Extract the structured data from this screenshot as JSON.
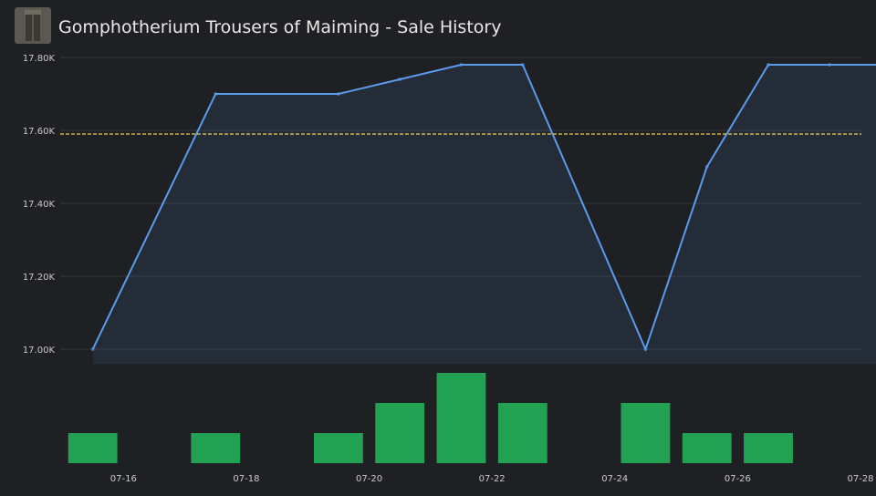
{
  "chart_data": {
    "type": "line",
    "title": "Gomphotherium Trousers of Maiming - Sale History",
    "x": [
      "07-15",
      "07-17",
      "07-19",
      "07-20",
      "07-21",
      "07-22",
      "07-24",
      "07-25",
      "07-26",
      "07-27"
    ],
    "series": [
      {
        "name": "Price",
        "color": "#5b9bec",
        "values": [
          17000,
          17700,
          17700,
          17740,
          17780,
          17780,
          17000,
          17500,
          17780,
          17780
        ]
      }
    ],
    "volume": {
      "type": "bar",
      "color": "#22a152",
      "x": [
        "07-15",
        "07-17",
        "07-19",
        "07-20",
        "07-21",
        "07-22",
        "07-24",
        "07-25",
        "07-26"
      ],
      "values": [
        1,
        1,
        1,
        2,
        3,
        2,
        2,
        1,
        1
      ],
      "ylim": [
        0,
        3
      ]
    },
    "average": 17590,
    "average_color": "#e8d44d",
    "xlim": [
      "07-15",
      "07-28"
    ],
    "xticks": [
      "07-16",
      "07-18",
      "07-20",
      "07-22",
      "07-24",
      "07-26",
      "07-28"
    ],
    "ylim": [
      16960,
      17820
    ],
    "yticks": [
      {
        "value": 17000,
        "label": "17.00K"
      },
      {
        "value": 17200,
        "label": "17.20K"
      },
      {
        "value": 17400,
        "label": "17.40K"
      },
      {
        "value": 17600,
        "label": "17.60K"
      },
      {
        "value": 17800,
        "label": "17.80K"
      }
    ],
    "grid": true
  }
}
